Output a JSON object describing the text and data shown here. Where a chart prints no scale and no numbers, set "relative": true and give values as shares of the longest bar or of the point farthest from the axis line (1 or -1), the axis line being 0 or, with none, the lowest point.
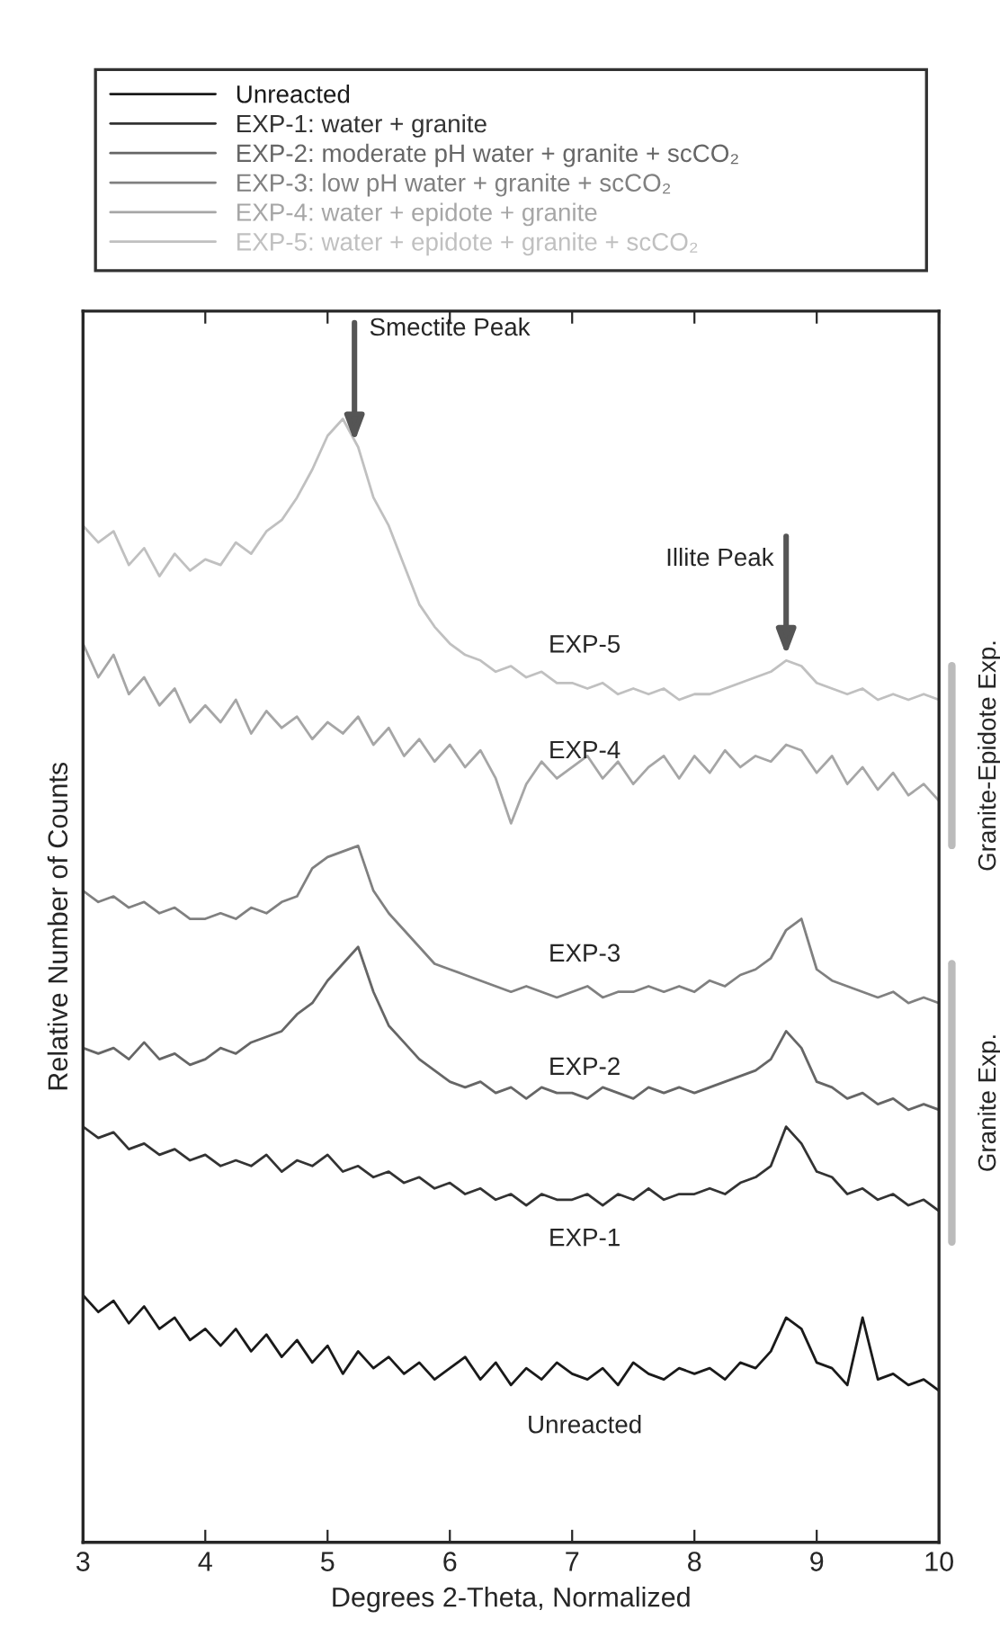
{
  "chart_data": {
    "type": "line",
    "relative": true,
    "xlabel": "Degrees 2-Theta, Normalized",
    "ylabel": "Relative Number of Counts",
    "xlim": [
      3,
      10
    ],
    "xticks": [
      3,
      4,
      5,
      6,
      7,
      8,
      9,
      10
    ],
    "legend": "top",
    "grid": false,
    "line_style": "solid",
    "marker": "none",
    "x": [
      3.0,
      3.125,
      3.25,
      3.375,
      3.5,
      3.625,
      3.75,
      3.875,
      4.0,
      4.125,
      4.25,
      4.375,
      4.5,
      4.625,
      4.75,
      4.875,
      5.0,
      5.125,
      5.25,
      5.375,
      5.5,
      5.625,
      5.75,
      5.875,
      6.0,
      6.125,
      6.25,
      6.375,
      6.5,
      6.625,
      6.75,
      6.875,
      7.0,
      7.125,
      7.25,
      7.375,
      7.5,
      7.625,
      7.75,
      7.875,
      8.0,
      8.125,
      8.25,
      8.375,
      8.5,
      8.625,
      8.75,
      8.875,
      9.0,
      9.125,
      9.25,
      9.375,
      9.5,
      9.625,
      9.75,
      9.875,
      10.0
    ],
    "series": [
      {
        "name": "Unreacted",
        "color": "#1a1a1a",
        "values": [
          0.22,
          0.205,
          0.215,
          0.195,
          0.21,
          0.19,
          0.2,
          0.18,
          0.19,
          0.175,
          0.19,
          0.17,
          0.185,
          0.165,
          0.18,
          0.16,
          0.175,
          0.15,
          0.17,
          0.155,
          0.165,
          0.15,
          0.16,
          0.145,
          0.155,
          0.165,
          0.145,
          0.16,
          0.14,
          0.155,
          0.145,
          0.16,
          0.15,
          0.145,
          0.155,
          0.14,
          0.16,
          0.15,
          0.145,
          0.155,
          0.15,
          0.155,
          0.145,
          0.16,
          0.155,
          0.17,
          0.2,
          0.19,
          0.16,
          0.155,
          0.14,
          0.2,
          0.145,
          0.15,
          0.14,
          0.145,
          0.135
        ]
      },
      {
        "name": "EXP-1: water + granite",
        "color": "#333333",
        "values": [
          0.37,
          0.36,
          0.365,
          0.35,
          0.355,
          0.345,
          0.35,
          0.34,
          0.345,
          0.335,
          0.34,
          0.335,
          0.345,
          0.33,
          0.34,
          0.335,
          0.345,
          0.33,
          0.335,
          0.325,
          0.33,
          0.32,
          0.325,
          0.315,
          0.32,
          0.31,
          0.315,
          0.305,
          0.31,
          0.3,
          0.31,
          0.305,
          0.305,
          0.31,
          0.3,
          0.31,
          0.305,
          0.315,
          0.305,
          0.31,
          0.31,
          0.315,
          0.31,
          0.32,
          0.325,
          0.335,
          0.37,
          0.355,
          0.33,
          0.325,
          0.31,
          0.315,
          0.305,
          0.31,
          0.3,
          0.305,
          0.295
        ]
      },
      {
        "name": "EXP-2: moderate pH water + granite + scCO₂",
        "color": "#666666",
        "values": [
          0.44,
          0.435,
          0.44,
          0.43,
          0.445,
          0.43,
          0.435,
          0.425,
          0.43,
          0.44,
          0.435,
          0.445,
          0.45,
          0.455,
          0.47,
          0.48,
          0.5,
          0.515,
          0.53,
          0.49,
          0.46,
          0.445,
          0.43,
          0.42,
          0.41,
          0.405,
          0.41,
          0.4,
          0.405,
          0.395,
          0.405,
          0.4,
          0.4,
          0.395,
          0.405,
          0.4,
          0.395,
          0.405,
          0.4,
          0.405,
          0.4,
          0.405,
          0.41,
          0.415,
          0.42,
          0.43,
          0.455,
          0.44,
          0.41,
          0.405,
          0.395,
          0.4,
          0.39,
          0.395,
          0.385,
          0.39,
          0.385
        ]
      },
      {
        "name": "EXP-3: low pH water + granite + scCO₂",
        "color": "#808080",
        "values": [
          0.58,
          0.57,
          0.575,
          0.565,
          0.57,
          0.56,
          0.565,
          0.555,
          0.555,
          0.56,
          0.555,
          0.565,
          0.56,
          0.57,
          0.575,
          0.6,
          0.61,
          0.615,
          0.62,
          0.58,
          0.56,
          0.545,
          0.53,
          0.515,
          0.51,
          0.505,
          0.5,
          0.495,
          0.49,
          0.495,
          0.49,
          0.485,
          0.49,
          0.495,
          0.485,
          0.49,
          0.49,
          0.495,
          0.49,
          0.495,
          0.49,
          0.5,
          0.495,
          0.505,
          0.51,
          0.52,
          0.545,
          0.555,
          0.51,
          0.5,
          0.495,
          0.49,
          0.485,
          0.49,
          0.48,
          0.485,
          0.48
        ]
      },
      {
        "name": "EXP-4: water + epidote + granite",
        "color": "#a6a6a6",
        "values": [
          0.8,
          0.77,
          0.79,
          0.755,
          0.77,
          0.745,
          0.76,
          0.73,
          0.745,
          0.73,
          0.75,
          0.72,
          0.74,
          0.725,
          0.735,
          0.715,
          0.73,
          0.72,
          0.735,
          0.71,
          0.725,
          0.7,
          0.715,
          0.695,
          0.71,
          0.69,
          0.705,
          0.68,
          0.64,
          0.675,
          0.695,
          0.68,
          0.69,
          0.7,
          0.68,
          0.695,
          0.675,
          0.69,
          0.7,
          0.68,
          0.7,
          0.685,
          0.705,
          0.69,
          0.7,
          0.695,
          0.71,
          0.705,
          0.685,
          0.7,
          0.675,
          0.69,
          0.67,
          0.685,
          0.665,
          0.675,
          0.66
        ]
      },
      {
        "name": "EXP-5: water + epidote + granite + scCO₂",
        "color": "#c0c0c0",
        "values": [
          0.905,
          0.89,
          0.9,
          0.87,
          0.885,
          0.86,
          0.88,
          0.865,
          0.875,
          0.87,
          0.89,
          0.88,
          0.9,
          0.91,
          0.93,
          0.955,
          0.985,
          1.0,
          0.975,
          0.93,
          0.905,
          0.87,
          0.835,
          0.815,
          0.8,
          0.79,
          0.785,
          0.775,
          0.78,
          0.77,
          0.775,
          0.765,
          0.765,
          0.76,
          0.765,
          0.755,
          0.76,
          0.755,
          0.76,
          0.75,
          0.755,
          0.755,
          0.76,
          0.765,
          0.77,
          0.775,
          0.785,
          0.78,
          0.765,
          0.76,
          0.755,
          0.76,
          0.75,
          0.755,
          0.75,
          0.755,
          0.75
        ]
      }
    ],
    "annotations": [
      {
        "text": "Smectite Peak",
        "x": 5.22,
        "y": 0.975
      },
      {
        "text": "Illite Peak",
        "x": 8.75,
        "y": 0.785
      },
      "EXP-5",
      "EXP-4",
      "EXP-3",
      "EXP-2",
      "EXP-1",
      "Unreacted",
      "Granite-Epidote Exp.",
      "Granite Exp."
    ]
  }
}
